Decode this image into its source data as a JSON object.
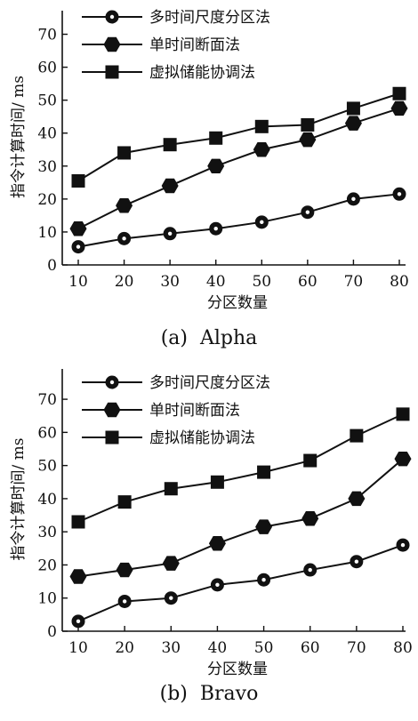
{
  "chart_data": [
    {
      "type": "line",
      "caption_tag": "(a)",
      "caption_name": "Alpha",
      "xlabel": "分区数量",
      "ylabel": "指令计算时间/ ms",
      "x": [
        10,
        20,
        30,
        40,
        50,
        60,
        70,
        80
      ],
      "xticks": [
        "10",
        "20",
        "30",
        "40",
        "50",
        "60",
        "70",
        "80"
      ],
      "yticks": [
        "0",
        "10",
        "20",
        "30",
        "40",
        "50",
        "60",
        "70"
      ],
      "ylim": [
        0,
        75
      ],
      "legend_position": "top-left",
      "grid": false,
      "series": [
        {
          "name": "多时间尺度分区法",
          "marker": "circle",
          "values": [
            5.5,
            8,
            9.5,
            11,
            13,
            16,
            20,
            21.5
          ]
        },
        {
          "name": "单时间断面法",
          "marker": "hexagon",
          "values": [
            11,
            18,
            24,
            30,
            35,
            38,
            43,
            47.5
          ]
        },
        {
          "name": "虚拟储能协调法",
          "marker": "square",
          "values": [
            25.5,
            34,
            36.5,
            38.5,
            42,
            42.5,
            47.5,
            52
          ]
        }
      ]
    },
    {
      "type": "line",
      "caption_tag": "(b)",
      "caption_name": "Bravo",
      "xlabel": "分区数量",
      "ylabel": "指令计算时间/ ms",
      "x": [
        10,
        20,
        30,
        40,
        50,
        60,
        70,
        80
      ],
      "xticks": [
        "10",
        "20",
        "30",
        "40",
        "50",
        "60",
        "70",
        "80"
      ],
      "yticks": [
        "0",
        "10",
        "20",
        "30",
        "40",
        "50",
        "60",
        "70"
      ],
      "ylim": [
        0,
        77
      ],
      "legend_position": "top-left",
      "grid": false,
      "series": [
        {
          "name": "多时间尺度分区法",
          "marker": "circle",
          "values": [
            3,
            9,
            10,
            14,
            15.5,
            18.5,
            21,
            26
          ]
        },
        {
          "name": "单时间断面法",
          "marker": "hexagon",
          "values": [
            16.5,
            18.5,
            20.5,
            26.5,
            31.5,
            34,
            40,
            52
          ]
        },
        {
          "name": "虚拟储能协调法",
          "marker": "square",
          "values": [
            33,
            39,
            43,
            45,
            48,
            51.5,
            59,
            65.5
          ]
        }
      ]
    }
  ]
}
